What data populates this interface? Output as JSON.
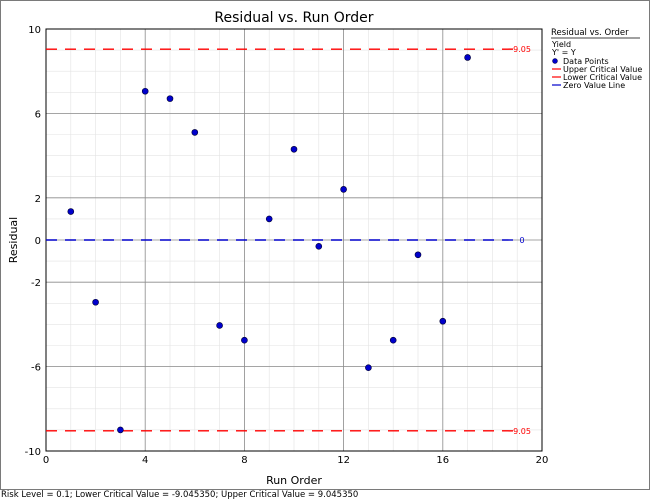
{
  "chart_data": {
    "type": "scatter",
    "title": "Residual vs. Run Order",
    "xlabel": "Run Order",
    "ylabel": "Residual",
    "xlim": [
      0,
      20
    ],
    "ylim": [
      -10,
      10
    ],
    "x_ticks": [
      "0",
      "4",
      "8",
      "12",
      "16",
      "20"
    ],
    "y_ticks": [
      "10",
      "6",
      "2",
      "0",
      "-2",
      "-6",
      "-10"
    ],
    "x_tick_values": [
      0,
      4,
      8,
      12,
      16,
      20
    ],
    "y_tick_values": [
      10,
      6,
      2,
      0,
      -2,
      -6,
      -10
    ],
    "grid": true,
    "series": [
      {
        "name": "Data Points",
        "color": "#0000cc",
        "x": [
          1,
          2,
          3,
          4,
          5,
          6,
          7,
          8,
          9,
          10,
          11,
          12,
          13,
          14,
          15,
          16,
          17
        ],
        "y": [
          1.35,
          -2.95,
          -9.0,
          7.05,
          6.7,
          5.1,
          -4.05,
          -4.75,
          1.0,
          4.3,
          -0.3,
          2.4,
          -6.05,
          -4.75,
          -0.7,
          -3.85,
          8.65
        ]
      }
    ],
    "reference_lines": [
      {
        "name": "Upper Critical Value",
        "value": 9.04535,
        "label": "9.05",
        "color": "#ff0000"
      },
      {
        "name": "Lower Critical Value",
        "value": -9.04535,
        "label": "9.05",
        "color": "#ff0000"
      },
      {
        "name": "Zero Value Line",
        "value": 0,
        "label": "0",
        "color": "#0000cc"
      }
    ],
    "legend": {
      "position": "right",
      "title": "Residual vs. Order",
      "subtitle1": "Yield",
      "subtitle2": "Y' = Y",
      "entries": [
        "Data Points",
        "Upper Critical Value",
        "Lower Critical Value",
        "Zero Value Line"
      ]
    }
  },
  "footer": "Risk Level = 0.1; Lower Critical Value = -9.045350; Upper Critical Value = 9.045350"
}
